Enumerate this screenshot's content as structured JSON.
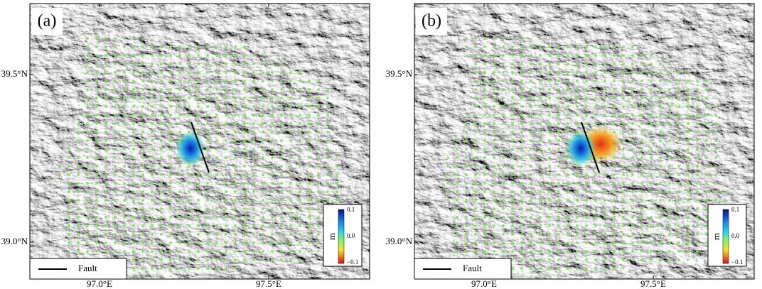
{
  "panels": [
    {
      "label": "(a)",
      "lat_labels": [
        "39.5°N",
        "39.0°N"
      ],
      "lon_labels": [
        "97.0°E",
        "97.5°E"
      ],
      "legend": "Fault",
      "colorbar": {
        "unit": "m",
        "ticks": [
          "0.1",
          "0.0",
          "−0.1"
        ]
      }
    },
    {
      "label": "(b)",
      "lat_labels": [
        "39.5°N",
        "39.0°N"
      ],
      "lon_labels": [
        "97.0°E",
        "97.5°E"
      ],
      "legend": "Fault",
      "colorbar": {
        "unit": "m",
        "ticks": [
          "0.1",
          "0.0",
          "−0.1"
        ]
      }
    }
  ]
}
